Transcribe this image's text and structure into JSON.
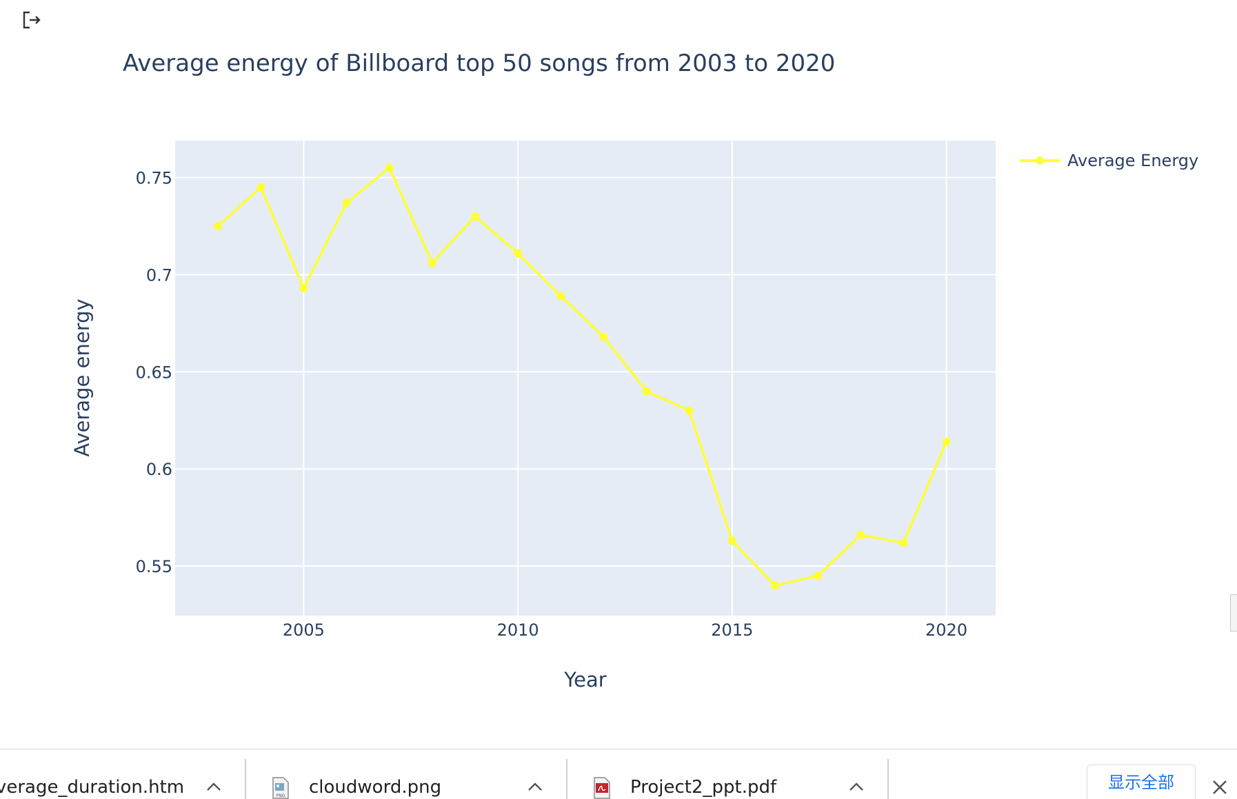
{
  "icons": {
    "exit": "exit-icon"
  },
  "chart_data": {
    "type": "line",
    "title": "Average energy of Billboard top 50 songs from 2003 to 2020",
    "xlabel": "Year",
    "ylabel": "Average energy",
    "xlim": [
      2002.0,
      2021.15
    ],
    "ylim": [
      0.5245,
      0.769
    ],
    "xticks": [
      2005,
      2010,
      2015,
      2020
    ],
    "xtick_labels": [
      "2005",
      "2010",
      "2015",
      "2020"
    ],
    "yticks": [
      0.55,
      0.6,
      0.65,
      0.7,
      0.75
    ],
    "ytick_labels": [
      "0.55",
      "0.6",
      "0.65",
      "0.7",
      "0.75"
    ],
    "grid": true,
    "legend_position": "top-right",
    "plot_bgcolor": "#e5ecf6",
    "series": [
      {
        "name": "Average Energy",
        "color": "#ffff33",
        "x": [
          2003,
          2004,
          2005,
          2006,
          2007,
          2008,
          2009,
          2010,
          2011,
          2012,
          2013,
          2014,
          2015,
          2016,
          2017,
          2018,
          2019,
          2020
        ],
        "y": [
          0.725,
          0.745,
          0.693,
          0.737,
          0.755,
          0.706,
          0.73,
          0.711,
          0.689,
          0.668,
          0.64,
          0.63,
          0.563,
          0.54,
          0.545,
          0.566,
          0.562,
          0.614
        ]
      }
    ]
  },
  "downloads": {
    "items": [
      {
        "name": "average_duration.htm",
        "icon": "html-file-icon"
      },
      {
        "name": "cloudword.png",
        "icon": "png-file-icon"
      },
      {
        "name": "Project2_ppt.pdf",
        "icon": "pdf-file-icon"
      }
    ],
    "show_all_label": "显示全部",
    "close_icon": "close-icon"
  }
}
